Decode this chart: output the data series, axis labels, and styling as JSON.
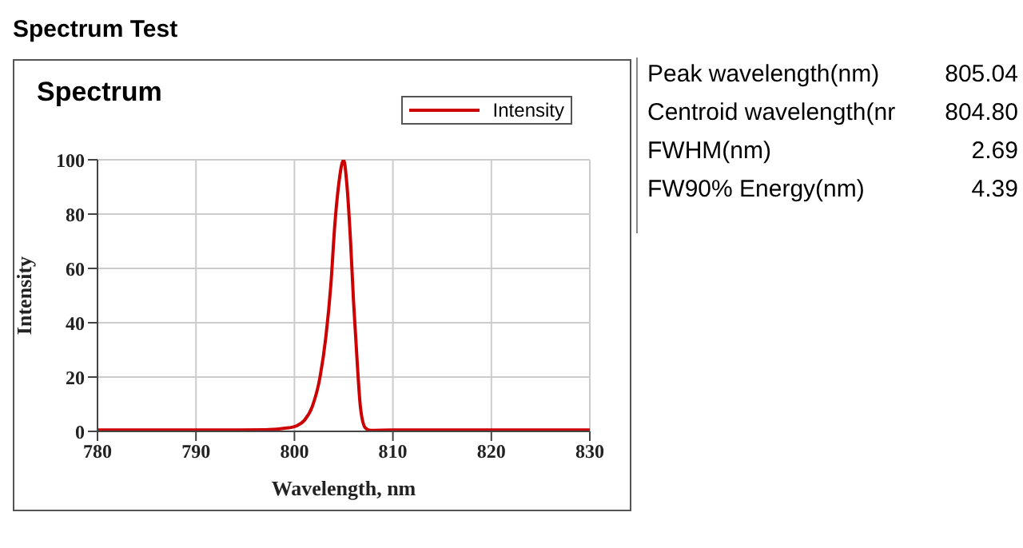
{
  "chart_data": [
    {
      "type": "line",
      "title": "Spectrum",
      "annotations": [
        "Spectrum Test"
      ],
      "xlabel": "Wavelength, nm",
      "ylabel": "Intensity",
      "x": [
        780,
        790,
        797,
        799.4,
        800.2,
        801,
        801.8,
        802.6,
        803.2,
        803.7,
        804.1,
        804.5,
        805,
        805.3,
        805.7,
        806,
        806.4,
        806.7,
        807.2,
        807.7,
        810,
        820,
        830
      ],
      "series": [
        {
          "name": "Intensity",
          "color": "#cc0000",
          "values": [
            0.5,
            0.5,
            0.6,
            1.3,
            2,
            4,
            9,
            20,
            35,
            54,
            76,
            91,
            100,
            92,
            70,
            48,
            24,
            9,
            1.3,
            0.4,
            0.5,
            0.5,
            0.5
          ]
        }
      ],
      "xlim": [
        780,
        830
      ],
      "xticks": [
        780,
        790,
        800,
        810,
        820,
        830
      ],
      "ylim": [
        0,
        100
      ],
      "yticks": [
        0,
        20,
        40,
        60,
        80,
        100
      ],
      "grid": true,
      "legend": "top right",
      "marker": "none",
      "line_style": "solid"
    },
    {
      "type": "other",
      "categories": [
        "Peak wavelength(nm)",
        "Centroid wavelength(nr",
        "FWHM(nm)",
        "FW90% Energy(nm)"
      ],
      "value_labels": [
        "805.04",
        "804.80",
        "2.69",
        "4.39"
      ]
    }
  ]
}
